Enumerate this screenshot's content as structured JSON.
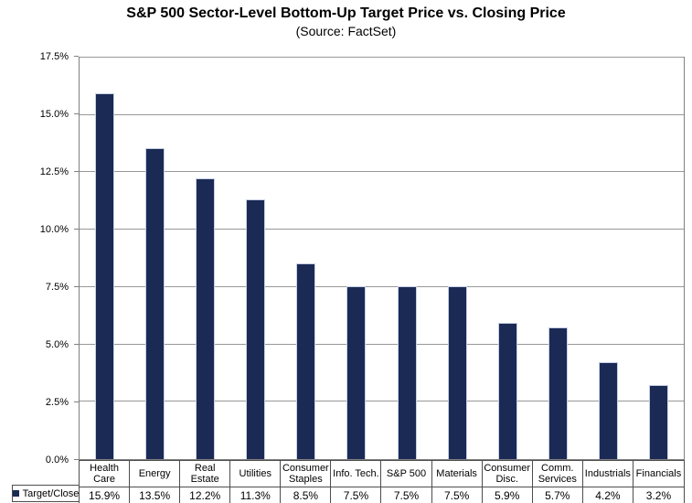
{
  "chart_data": {
    "type": "bar",
    "title": "S&P 500 Sector-Level Bottom-Up Target Price vs. Closing Price",
    "subtitle": "(Source: FactSet)",
    "series_name": "Target/Close",
    "categories": [
      "Health Care",
      "Energy",
      "Real Estate",
      "Utilities",
      "Consumer Staples",
      "Info. Tech.",
      "S&P 500",
      "Materials",
      "Consumer Disc.",
      "Comm. Services",
      "Industrials",
      "Financials"
    ],
    "values": [
      15.9,
      13.5,
      12.2,
      11.3,
      8.5,
      7.5,
      7.5,
      7.5,
      5.9,
      5.7,
      4.2,
      3.2
    ],
    "value_labels": [
      "15.9%",
      "13.5%",
      "12.2%",
      "11.3%",
      "8.5%",
      "7.5%",
      "7.5%",
      "7.5%",
      "5.9%",
      "5.7%",
      "4.2%",
      "3.2%"
    ],
    "ylabel_ticks": [
      "0.0%",
      "2.5%",
      "5.0%",
      "7.5%",
      "10.0%",
      "12.5%",
      "15.0%",
      "17.5%"
    ],
    "ylim": [
      0,
      17.5
    ],
    "ytick_interval": 2.5,
    "grid": true,
    "legend_position": "bottom-left",
    "bar_color": "#1b2a55",
    "gridline_color": "#989898"
  }
}
